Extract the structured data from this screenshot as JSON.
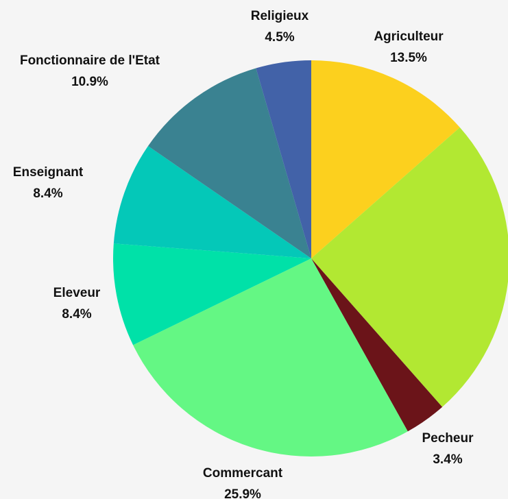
{
  "chart_data": {
    "type": "pie",
    "title": "",
    "unsized_note": "",
    "start_angle_deg": 0,
    "direction": "clockwise",
    "slices": [
      {
        "label": "Agriculteur",
        "value": 13.5,
        "display": "13.5%",
        "color": "#fcd01e"
      },
      {
        "label": "",
        "value": 25.0,
        "display": "",
        "color": "#b2e832"
      },
      {
        "label": "Pecheur",
        "value": 3.4,
        "display": "3.4%",
        "color": "#6b1419"
      },
      {
        "label": "Commercant",
        "value": 25.9,
        "display": "25.9%",
        "color": "#64f784"
      },
      {
        "label": "Eleveur",
        "value": 8.4,
        "display": "8.4%",
        "color": "#00e1a8"
      },
      {
        "label": "Enseignant",
        "value": 8.4,
        "display": "8.4%",
        "color": "#04c8b8"
      },
      {
        "label": "Fonctionnaire de l'Etat",
        "value": 10.9,
        "display": "10.9%",
        "color": "#3a8291"
      },
      {
        "label": "Religieux",
        "value": 4.5,
        "display": "4.5%",
        "color": "#4262a8"
      }
    ]
  }
}
